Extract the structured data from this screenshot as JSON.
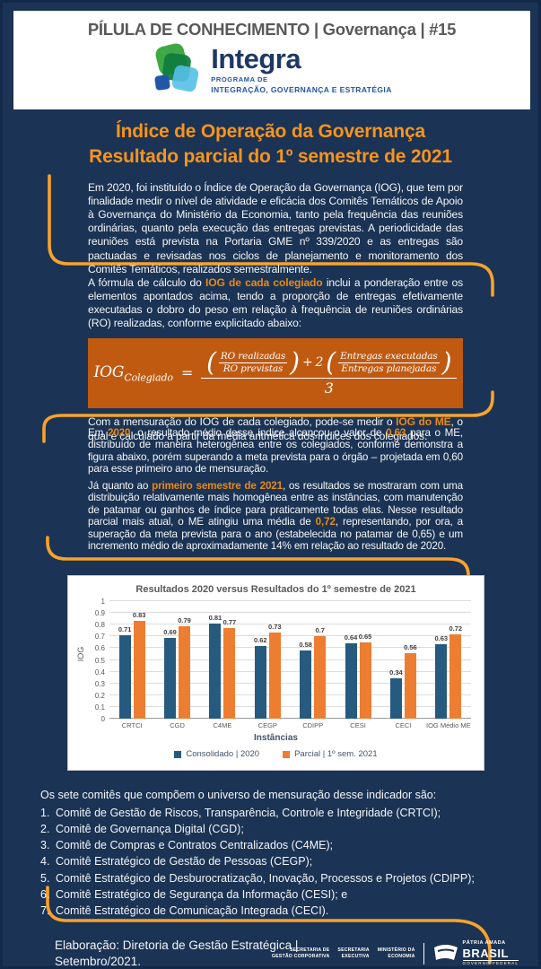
{
  "colors": {
    "page_bg": "#1b3354",
    "page_border": "#13294a",
    "accent": "#f7941d",
    "highlight": "#e98a15",
    "bracket": "#f8a22c",
    "formula_bg": "#c05a11",
    "kicker_gray": "#58595b",
    "logo_navy": "#1f3864",
    "logo_blue": "#2155a3",
    "chart_gray": "#595959"
  },
  "header": {
    "kicker": "PÍLULA DE CONHECIMENTO | Governança | #15",
    "logo": {
      "name": "Integra",
      "sub1": "PROGRAMA DE",
      "sub2": "INTEGRAÇÃO, GOVERNANÇA E ESTRATÉGIA"
    }
  },
  "title": {
    "line1": "Índice de Operação da Governança",
    "line2": "Resultado parcial do 1º semestre de 2021"
  },
  "sections": {
    "intro": "Em 2020, foi instituído o Índice de Operação da Governança (IOG), que tem por finalidade medir o nível de atividade e eficácia dos Comitês Temáticos de Apoio à Governança do Ministério da Economia, tanto pela frequência das reuniões ordinárias, quanto pela execução das entregas previstas. A periodicidade das reuniões está prevista na Portaria GME nº 339/2020 e as entregas são pactuadas e revisadas nos ciclos de planejamento e monitoramento dos Comitês Temáticos, realizados semestralmente.",
    "formula_intro": [
      {
        "t": "A fórmula de cálculo do "
      },
      {
        "t": "IOG de cada colegiado",
        "hl": true
      },
      {
        "t": " inclui a ponderação entre os elementos apontados acima, tendo a proporção de entregas efetivamente executadas o dobro do peso em relação à frequência de reuniões ordinárias (RO) realizadas, conforme explicitado abaixo:"
      }
    ],
    "formula": {
      "lhs": "IOG",
      "lhs_sub": "Colegiado",
      "equals": "=",
      "open_paren": "(",
      "close_paren": ")",
      "frac1_num": "RO realizadas",
      "frac1_den": "RO previstas",
      "operator": "+",
      "coefficient": "2",
      "frac2_num": "Entregas executadas",
      "frac2_den": "Entregas planejadas",
      "denominator": "3"
    },
    "formula_outro": [
      {
        "t": "Com a mensuração do IOG de cada colegiado, pode-se medir o "
      },
      {
        "t": "IOG do ME",
        "hl": true
      },
      {
        "t": ", o qual é calculado a partir da média aritmética dos índices dos colegiados."
      }
    ],
    "results_2020": [
      {
        "t": "Em "
      },
      {
        "t": "2020",
        "hl": true
      },
      {
        "t": ", o resultado médio desse índice alcançou o valor de "
      },
      {
        "t": "0,63",
        "hl": true
      },
      {
        "t": " para o ME, distribuído de maneira heterogênea entre os colegiados, conforme demonstra a figura abaixo, porém superando a meta prevista para o órgão – projetada em 0,60 para esse primeiro ano de mensuração."
      }
    ],
    "results_2021": [
      {
        "t": "Já quanto ao "
      },
      {
        "t": "primeiro semestre de 2021",
        "hl": true
      },
      {
        "t": ", os resultados se mostraram com uma distribuição relativamente mais homogênea entre as instâncias, com manutenção de patamar ou ganhos de índice para praticamente todas elas. Nesse resultado parcial mais atual, o ME atingiu uma média de "
      },
      {
        "t": "0,72",
        "hl": true
      },
      {
        "t": ", representando, por ora, a superação da meta prevista para o ano (estabelecida no patamar de 0,65) e um incremento médio de aproximadamente 14% em relação ao resultado de 2020."
      }
    ]
  },
  "chart_data": {
    "type": "bar",
    "title": "Resultados 2020 versus Resultados do 1º semestre de 2021",
    "xlabel": "Instâncias",
    "ylabel": "IOG",
    "ylim": [
      0,
      1
    ],
    "ytick_step": 0.1,
    "grid": true,
    "legend_position": "bottom",
    "categories": [
      "CRTCI",
      "CGD",
      "C4ME",
      "CEGP",
      "CDIPP",
      "CESI",
      "CECI",
      "IOG Médio ME"
    ],
    "series": [
      {
        "name": "Consolidado | 2020",
        "color": "#265a7e",
        "values": [
          0.71,
          0.69,
          0.81,
          0.62,
          0.58,
          0.64,
          0.34,
          0.63
        ]
      },
      {
        "name": "Parcial | 1º sem. 2021",
        "color": "#ed7d31",
        "values": [
          0.83,
          0.79,
          0.77,
          0.73,
          0.7,
          0.65,
          0.56,
          0.72
        ]
      }
    ]
  },
  "committees": {
    "intro": "Os sete comitês que compõem o universo de mensuração desse indicador são:",
    "items": [
      {
        "num": "1.",
        "text": "Comitê de Gestão de Riscos, Transparência, Controle e Integridade (CRTCI);"
      },
      {
        "num": "2.",
        "text": "Comitê de Governança Digital (CGD);"
      },
      {
        "num": "3.",
        "text": "Comitê de Compras e Contratos Centralizados (C4ME);"
      },
      {
        "num": "4.",
        "text": "Comitê Estratégico de Gestão de Pessoas (CEGP);"
      },
      {
        "num": "5.",
        "text": "Comitê Estratégico de Desburocratização, Inovação, Processos e Projetos (CDIPP);"
      },
      {
        "num": "6.",
        "text": "Comitê Estratégico de Segurança da Informação (CESI); e"
      },
      {
        "num": "7.",
        "text": "Comitê Estratégico de Comunicação Integrada (CECI)."
      }
    ]
  },
  "footer": {
    "credit_line1": "Elaboração: Diretoria de Gestão Estratégica |",
    "credit_line2": "Setembro/2021.",
    "gov": {
      "secretarias": [
        {
          "line1": "SECRETARIA DE",
          "line2": "GESTÃO CORPORATIVA"
        },
        {
          "line1": "SECRETARIA",
          "line2": "EXECUTIVA"
        },
        {
          "line1": "MINISTÉRIO DA",
          "line2": "ECONOMIA"
        }
      ],
      "brasil": {
        "top": "PÁTRIA AMADA",
        "name": "BRASIL",
        "bottom": "GOVERNO FEDERAL"
      }
    }
  }
}
